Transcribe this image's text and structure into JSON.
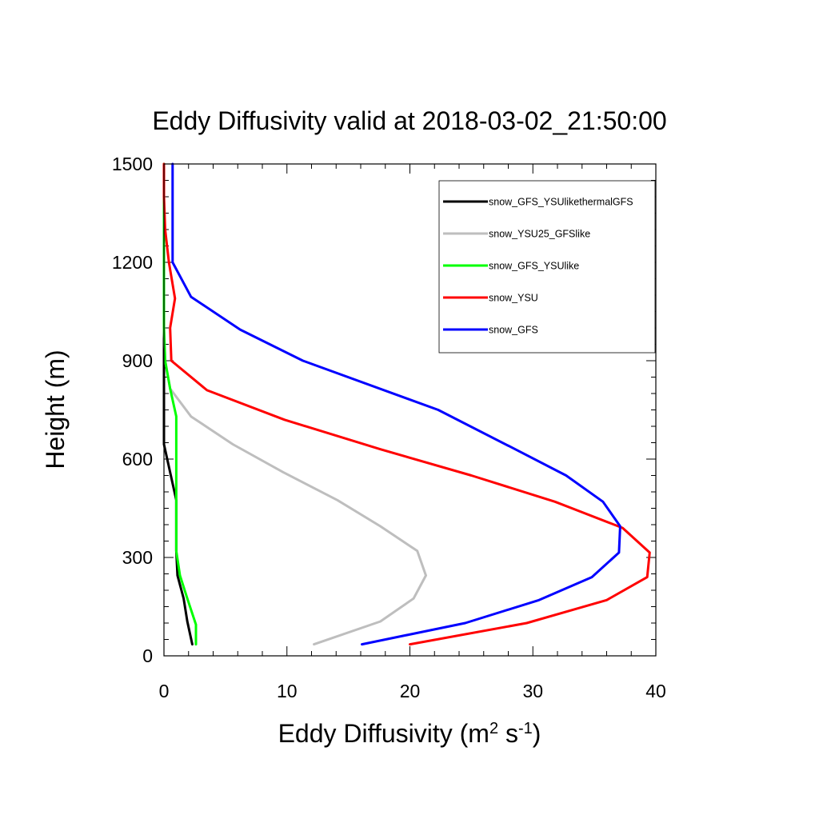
{
  "chart_data": {
    "type": "line",
    "title": "Eddy Diffusivity valid at 2018-03-02_21:50:00",
    "xlabel": "Eddy Diffusivity (m",
    "xlabel_sup1": "2",
    "xlabel_mid": " s",
    "xlabel_sup2": "-1",
    "xlabel_end": ")",
    "ylabel": "Height (m)",
    "xlim": [
      0,
      40
    ],
    "ylim": [
      0,
      1500
    ],
    "xticks": [
      0,
      10,
      20,
      30,
      40
    ],
    "yticks": [
      0,
      300,
      600,
      900,
      1200,
      1500
    ],
    "xtick_labels": [
      "0",
      "10",
      "20",
      "30",
      "40"
    ],
    "ytick_labels": [
      "0",
      "300",
      "600",
      "900",
      "1200",
      "1500"
    ],
    "legend_position": "top-right",
    "series": [
      {
        "name": "snow_GFS_YSUlikethermalGFS",
        "color": "#000000",
        "points": [
          [
            2.3,
            35
          ],
          [
            1.9,
            105
          ],
          [
            1.6,
            175
          ],
          [
            1.1,
            245
          ],
          [
            1.0,
            320
          ],
          [
            1.0,
            390
          ],
          [
            1.0,
            475
          ],
          [
            0.5,
            560
          ],
          [
            0.0,
            645
          ],
          [
            0.0,
            730
          ],
          [
            0.0,
            815
          ],
          [
            0.0,
            900
          ],
          [
            0.0,
            1000
          ],
          [
            0.0,
            1100
          ],
          [
            0.0,
            1200
          ],
          [
            0.0,
            1300
          ],
          [
            0.0,
            1400
          ],
          [
            0.0,
            1500
          ]
        ]
      },
      {
        "name": "snow_YSU25_GFSlike",
        "color": "#bebebe",
        "points": [
          [
            12.2,
            35
          ],
          [
            17.6,
            105
          ],
          [
            20.3,
            175
          ],
          [
            21.3,
            245
          ],
          [
            20.6,
            320
          ],
          [
            17.6,
            395
          ],
          [
            14.1,
            475
          ],
          [
            9.7,
            560
          ],
          [
            5.6,
            645
          ],
          [
            2.2,
            730
          ],
          [
            0.5,
            815
          ],
          [
            0.1,
            900
          ],
          [
            0.0,
            1000
          ],
          [
            0.0,
            1100
          ],
          [
            0.0,
            1200
          ],
          [
            0.0,
            1300
          ],
          [
            0.0,
            1400
          ],
          [
            0.0,
            1500
          ]
        ]
      },
      {
        "name": "snow_GFS_YSUlike",
        "color": "#00ff00",
        "points": [
          [
            2.6,
            35
          ],
          [
            2.6,
            95
          ],
          [
            1.9,
            175
          ],
          [
            1.3,
            245
          ],
          [
            1.0,
            320
          ],
          [
            1.0,
            390
          ],
          [
            1.0,
            475
          ],
          [
            1.0,
            560
          ],
          [
            1.0,
            645
          ],
          [
            1.0,
            730
          ],
          [
            0.5,
            815
          ],
          [
            0.1,
            900
          ],
          [
            0.0,
            1000
          ],
          [
            0.0,
            1100
          ],
          [
            0.0,
            1200
          ],
          [
            0.0,
            1300
          ],
          [
            0.0,
            1400
          ],
          [
            0.0,
            1500
          ]
        ]
      },
      {
        "name": "snow_YSU",
        "color": "#ff0000",
        "points": [
          [
            20.0,
            35
          ],
          [
            29.5,
            100
          ],
          [
            36.0,
            170
          ],
          [
            39.3,
            240
          ],
          [
            39.5,
            315
          ],
          [
            37.3,
            390
          ],
          [
            31.8,
            470
          ],
          [
            25.0,
            550
          ],
          [
            17.6,
            630
          ],
          [
            9.8,
            720
          ],
          [
            3.5,
            810
          ],
          [
            0.6,
            900
          ],
          [
            0.5,
            1000
          ],
          [
            0.9,
            1090
          ],
          [
            0.4,
            1200
          ],
          [
            0.1,
            1300
          ],
          [
            0.0,
            1400
          ],
          [
            0.0,
            1500
          ]
        ]
      },
      {
        "name": "snow_GFS",
        "color": "#0000ff",
        "points": [
          [
            16.1,
            35
          ],
          [
            24.5,
            100
          ],
          [
            30.5,
            170
          ],
          [
            34.8,
            240
          ],
          [
            37.0,
            315
          ],
          [
            37.1,
            395
          ],
          [
            35.7,
            470
          ],
          [
            32.7,
            550
          ],
          [
            28.3,
            635
          ],
          [
            22.3,
            750
          ],
          [
            11.3,
            900
          ],
          [
            6.2,
            995
          ],
          [
            2.2,
            1095
          ],
          [
            0.7,
            1200
          ],
          [
            0.7,
            1300
          ],
          [
            0.7,
            1400
          ],
          [
            0.7,
            1500
          ]
        ]
      }
    ]
  }
}
